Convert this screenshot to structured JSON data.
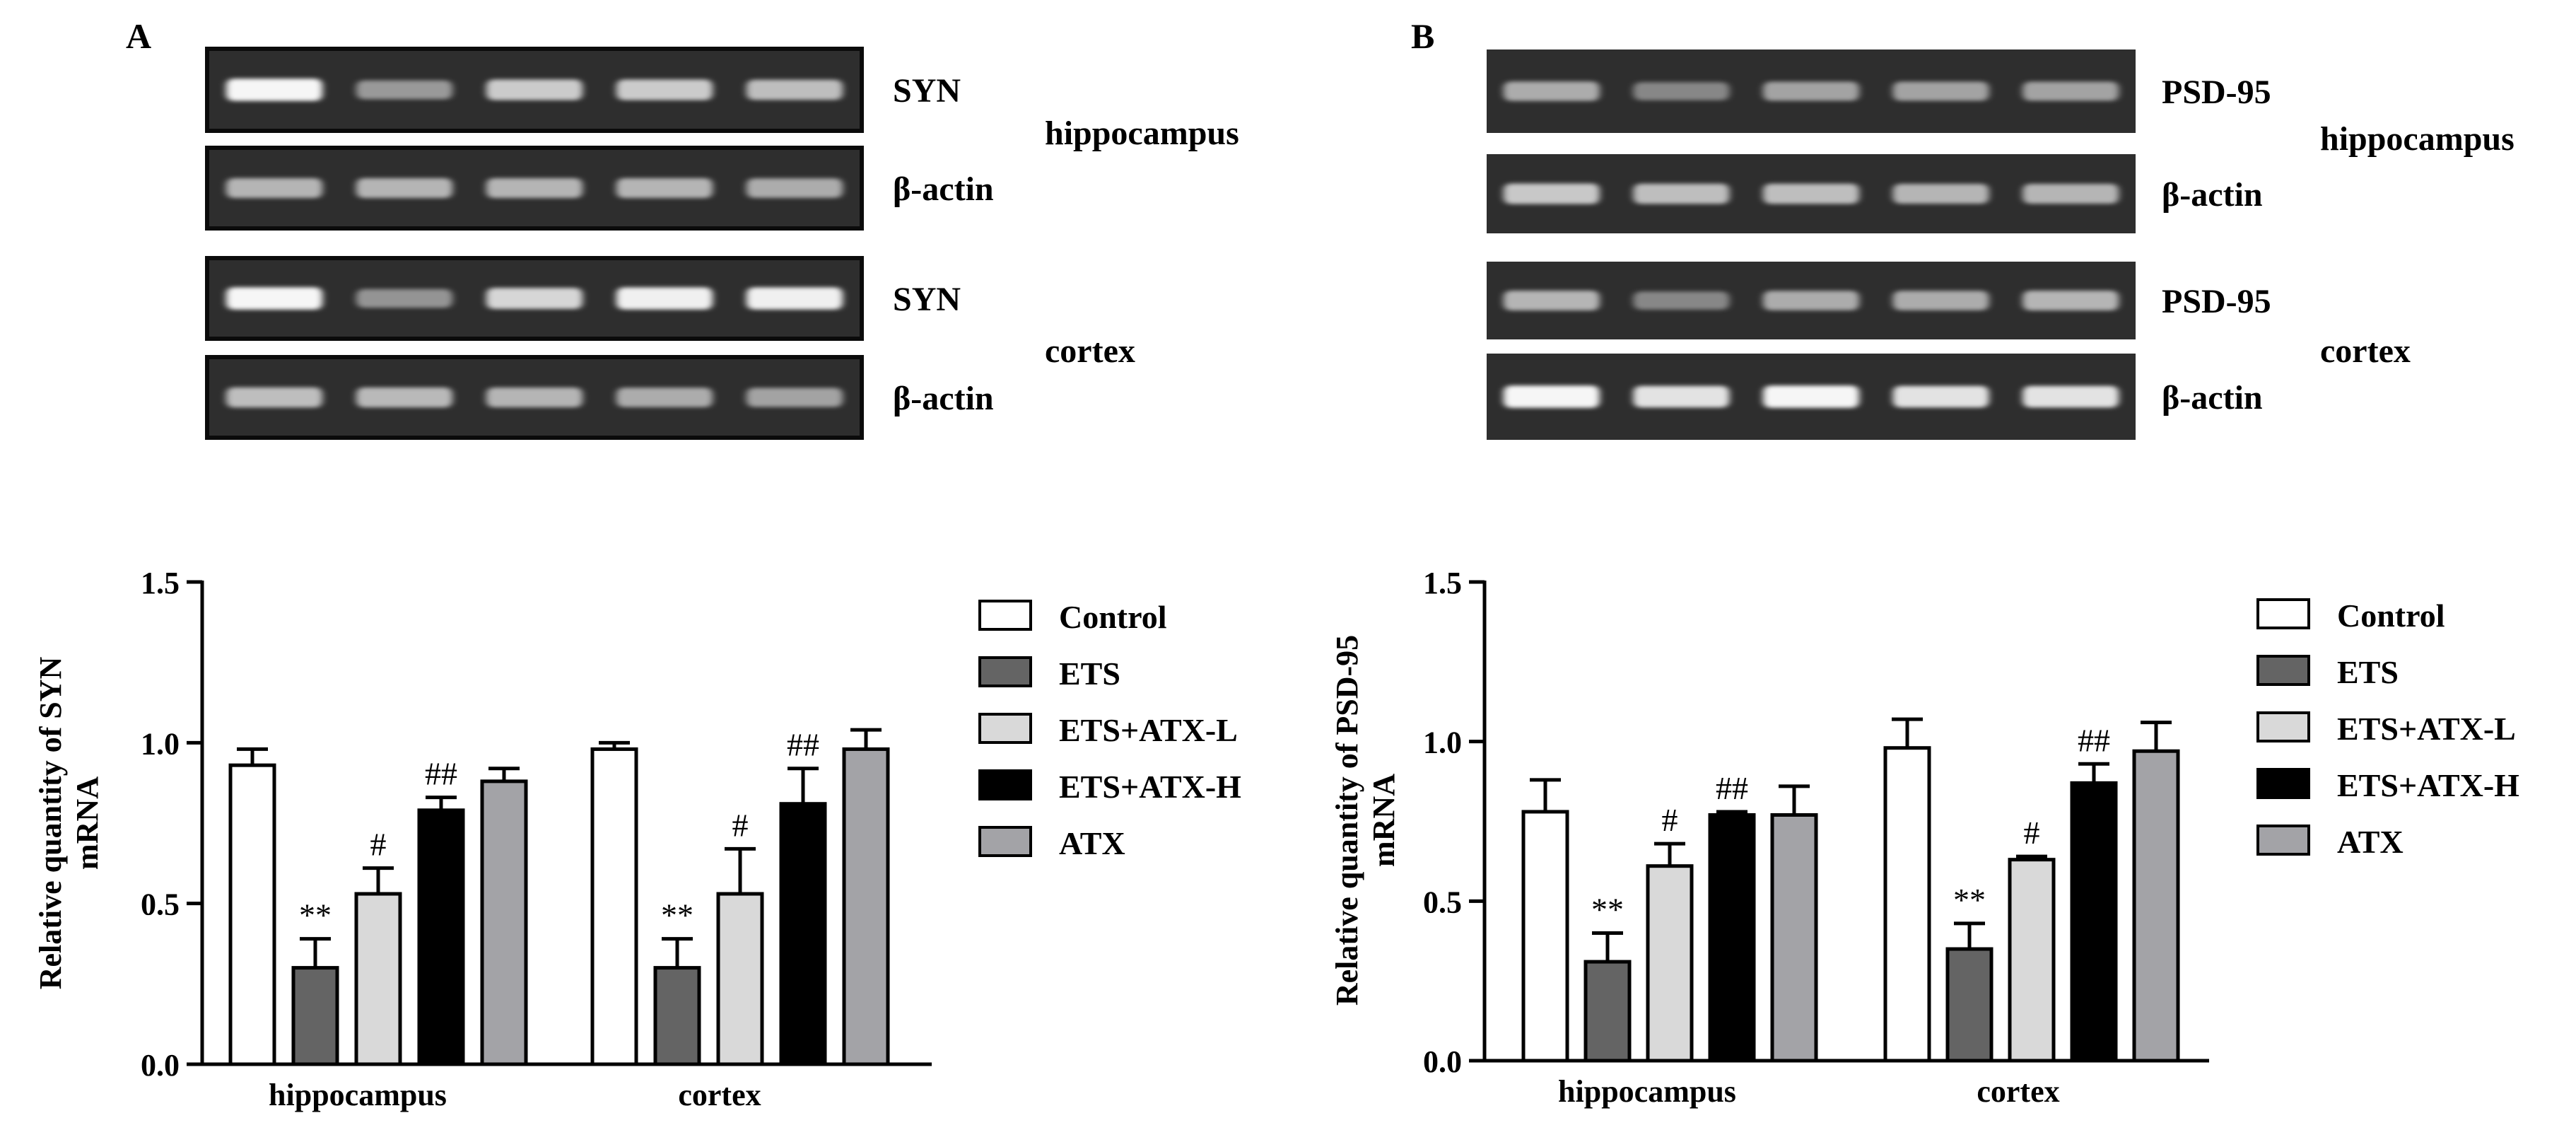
{
  "panels": [
    {
      "letter": "A",
      "gel": {
        "rows": [
          {
            "target": "SYN",
            "intensities": [
              0.95,
              0.45,
              0.72,
              0.72,
              0.65
            ],
            "framed": true
          },
          {
            "target": "β-actin",
            "intensities": [
              0.6,
              0.6,
              0.6,
              0.6,
              0.55
            ],
            "framed": true
          },
          {
            "target": "SYN",
            "intensities": [
              0.95,
              0.42,
              0.78,
              0.92,
              0.92
            ],
            "framed": true
          },
          {
            "target": "β-actin",
            "intensities": [
              0.65,
              0.62,
              0.6,
              0.55,
              0.5
            ],
            "framed": true
          }
        ],
        "tissue_labels": [
          "hippocampus",
          "cortex"
        ]
      }
    },
    {
      "letter": "B",
      "gel": {
        "rows": [
          {
            "target": "PSD-95",
            "intensities": [
              0.55,
              0.35,
              0.5,
              0.5,
              0.5
            ],
            "framed": false
          },
          {
            "target": "β-actin",
            "intensities": [
              0.7,
              0.65,
              0.65,
              0.6,
              0.6
            ],
            "framed": false
          },
          {
            "target": "PSD-95",
            "intensities": [
              0.6,
              0.35,
              0.55,
              0.55,
              0.6
            ],
            "framed": false
          },
          {
            "target": "β-actin",
            "intensities": [
              0.95,
              0.85,
              0.95,
              0.85,
              0.85
            ],
            "framed": false
          }
        ],
        "tissue_labels": [
          "hippocampus",
          "cortex"
        ]
      }
    }
  ],
  "legend": [
    "Control",
    "ETS",
    "ETS+ATX-L",
    "ETS+ATX-H",
    "ATX"
  ],
  "colors": {
    "Control": "#ffffff",
    "ETS": "#646464",
    "ETS+ATX-L": "#d9d9d9",
    "ETS+ATX-H": "#000000",
    "ATX": "#a3a3a7"
  },
  "chart_data": [
    {
      "type": "bar",
      "title": "",
      "xlabel": "",
      "ylabel_lines": [
        "Relative quantity of SYN",
        "mRNA"
      ],
      "categories": [
        "hippocampus",
        "cortex"
      ],
      "ylim": [
        0,
        1.5
      ],
      "yticks": [
        "0.0",
        "0.5",
        "1.0",
        "1.5"
      ],
      "legend_position": "right",
      "series": [
        {
          "name": "Control",
          "values": [
            0.93,
            0.98
          ],
          "errors": [
            0.05,
            0.02
          ],
          "annotations": [
            "",
            ""
          ]
        },
        {
          "name": "ETS",
          "values": [
            0.3,
            0.3
          ],
          "errors": [
            0.09,
            0.09
          ],
          "annotations": [
            "**",
            "**"
          ]
        },
        {
          "name": "ETS+ATX-L",
          "values": [
            0.53,
            0.53
          ],
          "errors": [
            0.08,
            0.14
          ],
          "annotations": [
            "#",
            "#"
          ]
        },
        {
          "name": "ETS+ATX-H",
          "values": [
            0.79,
            0.81
          ],
          "errors": [
            0.04,
            0.11
          ],
          "annotations": [
            "##",
            "##"
          ]
        },
        {
          "name": "ATX",
          "values": [
            0.88,
            0.98
          ],
          "errors": [
            0.04,
            0.06
          ],
          "annotations": [
            "",
            ""
          ]
        }
      ]
    },
    {
      "type": "bar",
      "title": "",
      "xlabel": "",
      "ylabel_lines": [
        "Relative quantity of PSD-95",
        "mRNA"
      ],
      "categories": [
        "hippocampus",
        "cortex"
      ],
      "ylim": [
        0,
        1.5
      ],
      "yticks": [
        "0.0",
        "0.5",
        "1.0",
        "1.5"
      ],
      "legend_position": "right",
      "series": [
        {
          "name": "Control",
          "values": [
            0.78,
            0.98
          ],
          "errors": [
            0.1,
            0.09
          ],
          "annotations": [
            "",
            ""
          ]
        },
        {
          "name": "ETS",
          "values": [
            0.31,
            0.35
          ],
          "errors": [
            0.09,
            0.08
          ],
          "annotations": [
            "**",
            "**"
          ]
        },
        {
          "name": "ETS+ATX-L",
          "values": [
            0.61,
            0.63
          ],
          "errors": [
            0.07,
            0.01
          ],
          "annotations": [
            "#",
            "#"
          ]
        },
        {
          "name": "ETS+ATX-H",
          "values": [
            0.77,
            0.87
          ],
          "errors": [
            0.01,
            0.06
          ],
          "annotations": [
            "##",
            "##"
          ]
        },
        {
          "name": "ATX",
          "values": [
            0.77,
            0.97
          ],
          "errors": [
            0.09,
            0.09
          ],
          "annotations": [
            "",
            ""
          ]
        }
      ]
    }
  ]
}
